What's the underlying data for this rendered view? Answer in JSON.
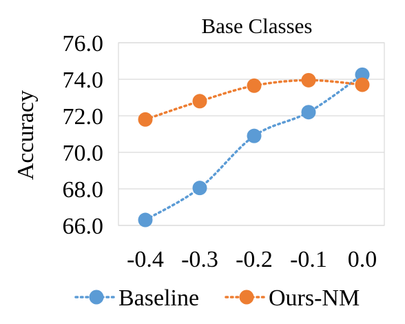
{
  "chart_data": {
    "type": "line",
    "title": "Base Classes",
    "xlabel": "",
    "ylabel": "Accuracy",
    "x": [
      "-0.4",
      "-0.3",
      "-0.2",
      "-0.1",
      "0.0"
    ],
    "y_ticks": [
      "66.0",
      "68.0",
      "70.0",
      "72.0",
      "74.0",
      "76.0"
    ],
    "ylim": [
      66.0,
      76.0
    ],
    "grid": "horizontal",
    "legend_position": "bottom",
    "line_style": "dotted",
    "series": [
      {
        "name": "Baseline",
        "color": "#5b9bd5",
        "values": [
          66.3,
          68.05,
          70.9,
          72.2,
          74.25
        ]
      },
      {
        "name": "Ours-NM",
        "color": "#ed7d31",
        "values": [
          71.8,
          72.8,
          73.65,
          73.95,
          73.7
        ]
      }
    ]
  }
}
